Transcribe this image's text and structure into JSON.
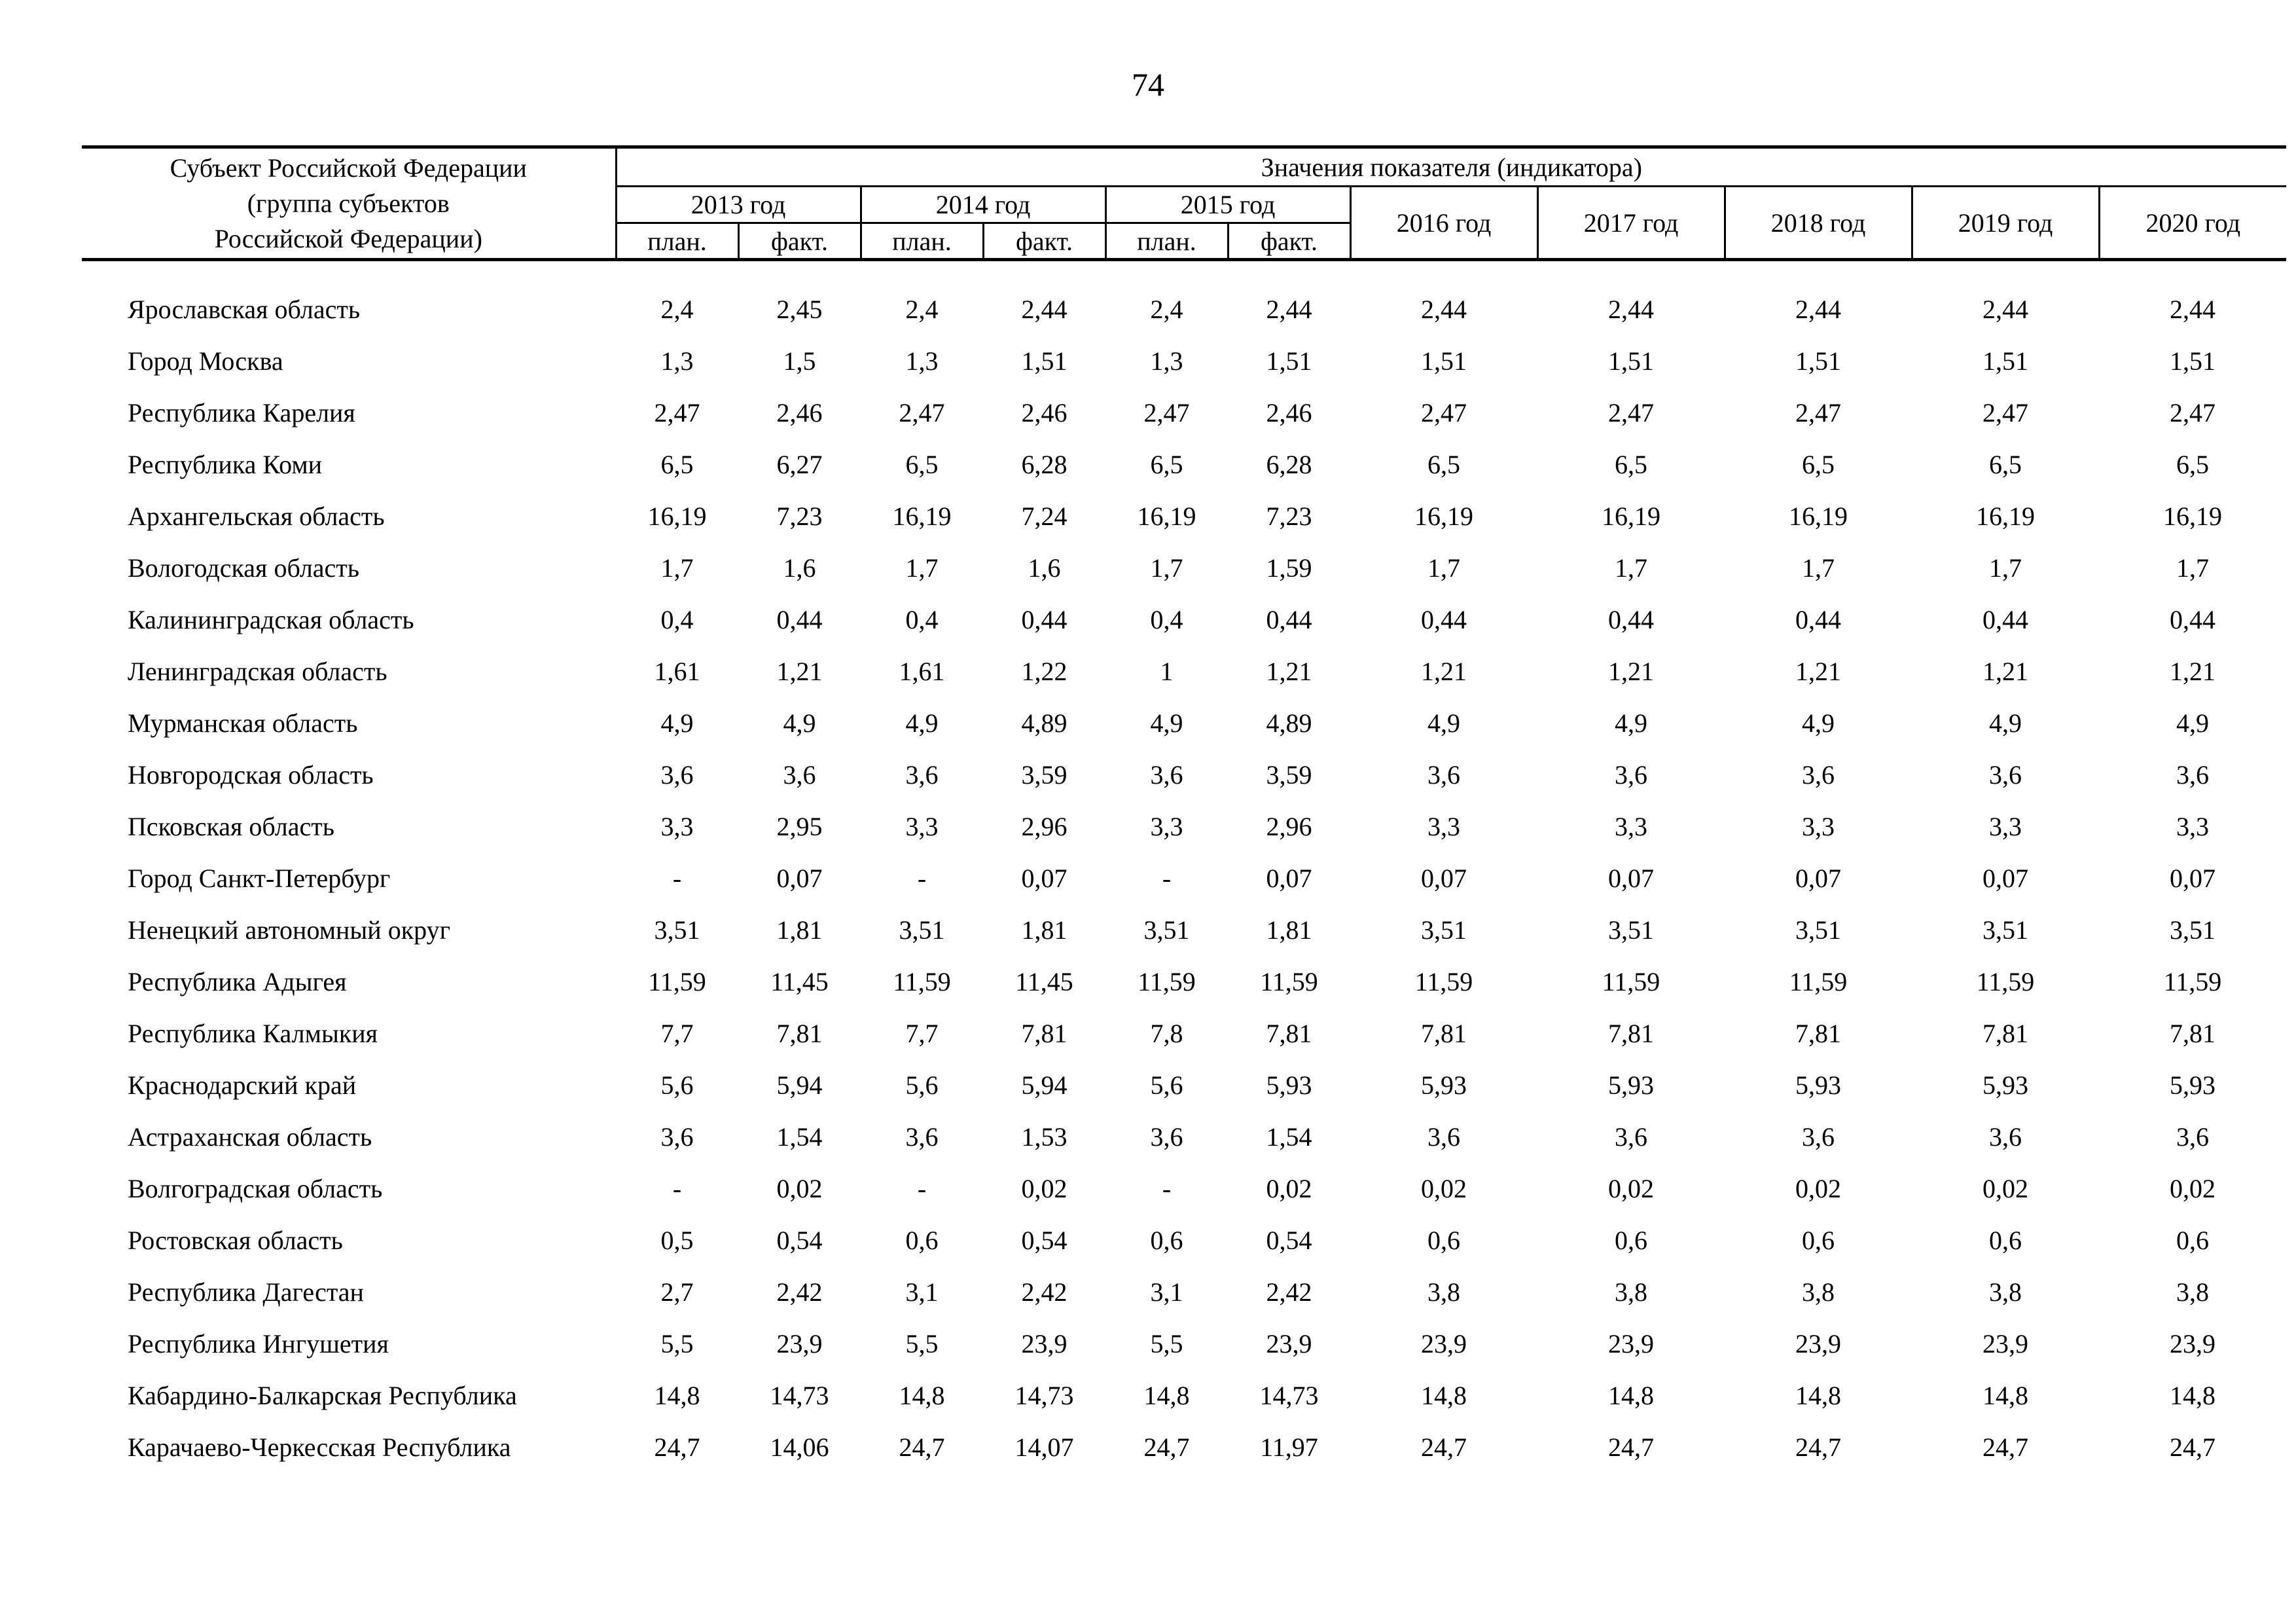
{
  "page": {
    "number": "74"
  },
  "table": {
    "header": {
      "subject_line1": "Субъект Российской Федерации",
      "subject_line2": "(группа субъектов",
      "subject_line3": "Российской Федерации)",
      "values_label": "Значения показателя (индикатора)",
      "year_groups": [
        "2013 год",
        "2014 год",
        "2015 год"
      ],
      "plan_label": "план.",
      "fact_label": "факт.",
      "single_years": [
        "2016 год",
        "2017 год",
        "2018 год",
        "2019 год",
        "2020 год"
      ]
    },
    "rows": [
      {
        "name": "Ярославская область",
        "values": [
          "2,4",
          "2,45",
          "2,4",
          "2,44",
          "2,4",
          "2,44",
          "2,44",
          "2,44",
          "2,44",
          "2,44",
          "2,44"
        ]
      },
      {
        "name": "Город Москва",
        "values": [
          "1,3",
          "1,5",
          "1,3",
          "1,51",
          "1,3",
          "1,51",
          "1,51",
          "1,51",
          "1,51",
          "1,51",
          "1,51"
        ]
      },
      {
        "name": "Республика Карелия",
        "values": [
          "2,47",
          "2,46",
          "2,47",
          "2,46",
          "2,47",
          "2,46",
          "2,47",
          "2,47",
          "2,47",
          "2,47",
          "2,47"
        ]
      },
      {
        "name": "Республика Коми",
        "values": [
          "6,5",
          "6,27",
          "6,5",
          "6,28",
          "6,5",
          "6,28",
          "6,5",
          "6,5",
          "6,5",
          "6,5",
          "6,5"
        ]
      },
      {
        "name": "Архангельская область",
        "values": [
          "16,19",
          "7,23",
          "16,19",
          "7,24",
          "16,19",
          "7,23",
          "16,19",
          "16,19",
          "16,19",
          "16,19",
          "16,19"
        ]
      },
      {
        "name": "Вологодская область",
        "values": [
          "1,7",
          "1,6",
          "1,7",
          "1,6",
          "1,7",
          "1,59",
          "1,7",
          "1,7",
          "1,7",
          "1,7",
          "1,7"
        ]
      },
      {
        "name": "Калининградская область",
        "values": [
          "0,4",
          "0,44",
          "0,4",
          "0,44",
          "0,4",
          "0,44",
          "0,44",
          "0,44",
          "0,44",
          "0,44",
          "0,44"
        ]
      },
      {
        "name": "Ленинградская область",
        "values": [
          "1,61",
          "1,21",
          "1,61",
          "1,22",
          "1",
          "1,21",
          "1,21",
          "1,21",
          "1,21",
          "1,21",
          "1,21"
        ]
      },
      {
        "name": "Мурманская область",
        "values": [
          "4,9",
          "4,9",
          "4,9",
          "4,89",
          "4,9",
          "4,89",
          "4,9",
          "4,9",
          "4,9",
          "4,9",
          "4,9"
        ]
      },
      {
        "name": "Новгородская область",
        "values": [
          "3,6",
          "3,6",
          "3,6",
          "3,59",
          "3,6",
          "3,59",
          "3,6",
          "3,6",
          "3,6",
          "3,6",
          "3,6"
        ]
      },
      {
        "name": "Псковская область",
        "values": [
          "3,3",
          "2,95",
          "3,3",
          "2,96",
          "3,3",
          "2,96",
          "3,3",
          "3,3",
          "3,3",
          "3,3",
          "3,3"
        ]
      },
      {
        "name": "Город Санкт-Петербург",
        "values": [
          "-",
          "0,07",
          "-",
          "0,07",
          "-",
          "0,07",
          "0,07",
          "0,07",
          "0,07",
          "0,07",
          "0,07"
        ]
      },
      {
        "name": "Ненецкий автономный округ",
        "values": [
          "3,51",
          "1,81",
          "3,51",
          "1,81",
          "3,51",
          "1,81",
          "3,51",
          "3,51",
          "3,51",
          "3,51",
          "3,51"
        ]
      },
      {
        "name": "Республика Адыгея",
        "values": [
          "11,59",
          "11,45",
          "11,59",
          "11,45",
          "11,59",
          "11,59",
          "11,59",
          "11,59",
          "11,59",
          "11,59",
          "11,59"
        ]
      },
      {
        "name": "Республика Калмыкия",
        "values": [
          "7,7",
          "7,81",
          "7,7",
          "7,81",
          "7,8",
          "7,81",
          "7,81",
          "7,81",
          "7,81",
          "7,81",
          "7,81"
        ]
      },
      {
        "name": "Краснодарский край",
        "values": [
          "5,6",
          "5,94",
          "5,6",
          "5,94",
          "5,6",
          "5,93",
          "5,93",
          "5,93",
          "5,93",
          "5,93",
          "5,93"
        ]
      },
      {
        "name": "Астраханская область",
        "values": [
          "3,6",
          "1,54",
          "3,6",
          "1,53",
          "3,6",
          "1,54",
          "3,6",
          "3,6",
          "3,6",
          "3,6",
          "3,6"
        ]
      },
      {
        "name": "Волгоградская область",
        "values": [
          "-",
          "0,02",
          "-",
          "0,02",
          "-",
          "0,02",
          "0,02",
          "0,02",
          "0,02",
          "0,02",
          "0,02"
        ]
      },
      {
        "name": "Ростовская область",
        "values": [
          "0,5",
          "0,54",
          "0,6",
          "0,54",
          "0,6",
          "0,54",
          "0,6",
          "0,6",
          "0,6",
          "0,6",
          "0,6"
        ]
      },
      {
        "name": "Республика Дагестан",
        "values": [
          "2,7",
          "2,42",
          "3,1",
          "2,42",
          "3,1",
          "2,42",
          "3,8",
          "3,8",
          "3,8",
          "3,8",
          "3,8"
        ]
      },
      {
        "name": "Республика Ингушетия",
        "values": [
          "5,5",
          "23,9",
          "5,5",
          "23,9",
          "5,5",
          "23,9",
          "23,9",
          "23,9",
          "23,9",
          "23,9",
          "23,9"
        ]
      },
      {
        "name": "Кабардино-Балкарская Республика",
        "values": [
          "14,8",
          "14,73",
          "14,8",
          "14,73",
          "14,8",
          "14,73",
          "14,8",
          "14,8",
          "14,8",
          "14,8",
          "14,8"
        ]
      },
      {
        "name": "Карачаево-Черкесская Республика",
        "values": [
          "24,7",
          "14,06",
          "24,7",
          "14,07",
          "24,7",
          "11,97",
          "24,7",
          "24,7",
          "24,7",
          "24,7",
          "24,7"
        ]
      }
    ]
  }
}
